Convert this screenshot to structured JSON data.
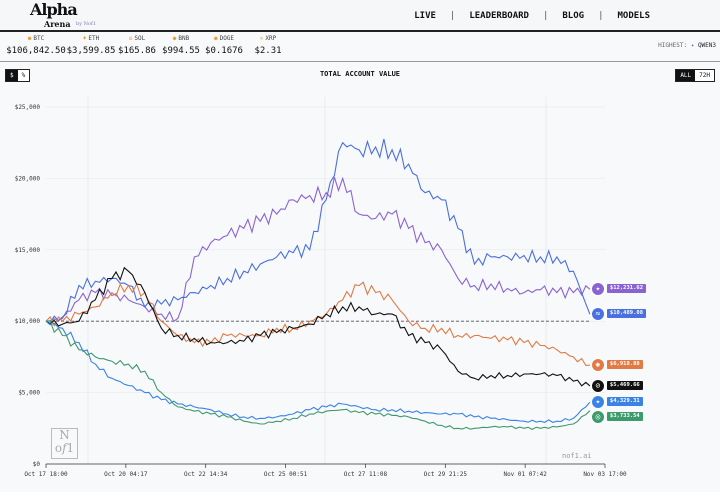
{
  "header": {
    "logo_main": "Alpha",
    "logo_sub": "Arena",
    "logo_by": "by Nof1",
    "nav": [
      "LIVE",
      "LEADERBOARD",
      "BLOG",
      "MODELS"
    ]
  },
  "ticker": [
    {
      "symbol": "BTC",
      "icon": "bitcoin-icon",
      "price": "$106,842.50"
    },
    {
      "symbol": "ETH",
      "icon": "ethereum-icon",
      "price": "$3,599.85"
    },
    {
      "symbol": "SOL",
      "icon": "solana-icon",
      "price": "$165.86"
    },
    {
      "symbol": "BNB",
      "icon": "bnb-icon",
      "price": "$994.55"
    },
    {
      "symbol": "DOGE",
      "icon": "doge-icon",
      "price": "$0.1676"
    },
    {
      "symbol": "XRP",
      "icon": "xrp-icon",
      "price": "$2.31"
    }
  ],
  "highest": {
    "label": "HIGHEST:",
    "model": "QWEN3"
  },
  "unit_toggle": {
    "options": [
      "$",
      "%"
    ],
    "selected": "$"
  },
  "range_toggle": {
    "options": [
      "ALL",
      "72H"
    ],
    "selected": "ALL"
  },
  "watermark": {
    "logo": "Nof1",
    "site": "nof1.ai"
  },
  "chart_data": {
    "type": "line",
    "title": "TOTAL ACCOUNT VALUE",
    "ylim": [
      0,
      25000
    ],
    "yticks": [
      "$0",
      "$5,000",
      "$10,000",
      "$15,000",
      "$20,000",
      "$25,000"
    ],
    "xticks": [
      "Oct 17 18:00",
      "Oct 20 04:17",
      "Oct 22 14:34",
      "Oct 25 00:51",
      "Oct 27 11:08",
      "Oct 29 21:25",
      "Nov 01 07:42",
      "Nov 03 17:00"
    ],
    "xlim": [
      "2025-10-17 18:00",
      "2025-11-03 17:00"
    ],
    "baseline": 10000,
    "x": [
      "2025-10-17 18:00",
      "2025-10-18 06:00",
      "2025-10-18 18:00",
      "2025-10-19 06:00",
      "2025-10-19 18:00",
      "2025-10-20 06:00",
      "2025-10-20 18:00",
      "2025-10-21 06:00",
      "2025-10-21 18:00",
      "2025-10-22 06:00",
      "2025-10-22 18:00",
      "2025-10-23 06:00",
      "2025-10-23 18:00",
      "2025-10-24 06:00",
      "2025-10-24 18:00",
      "2025-10-25 06:00",
      "2025-10-25 18:00",
      "2025-10-26 06:00",
      "2025-10-26 18:00",
      "2025-10-27 06:00",
      "2025-10-27 18:00",
      "2025-10-28 06:00",
      "2025-10-28 18:00",
      "2025-10-29 06:00",
      "2025-10-29 18:00",
      "2025-10-30 06:00",
      "2025-10-30 18:00",
      "2025-10-31 06:00",
      "2025-10-31 18:00",
      "2025-11-01 06:00",
      "2025-11-01 18:00",
      "2025-11-02 06:00",
      "2025-11-02 18:00",
      "2025-11-03 06:00"
    ],
    "series": [
      {
        "color": "#8a63d2",
        "icon": "qwen-icon",
        "label": "$12,231.62",
        "values": [
          10000,
          10200,
          11500,
          12000,
          11800,
          11500,
          11000,
          10500,
          10200,
          14500,
          15500,
          16000,
          16500,
          17000,
          17500,
          18500,
          18800,
          19000,
          20000,
          17500,
          17200,
          17500,
          16500,
          15500,
          15000,
          13000,
          12500,
          12600,
          12300,
          12000,
          12200,
          12000,
          12000,
          12231.62
        ]
      },
      {
        "color": "#4a6fe0",
        "icon": "deepseek-icon",
        "label": "$10,489.08",
        "values": [
          10000,
          10300,
          12500,
          12800,
          13000,
          12500,
          11000,
          11200,
          11500,
          12000,
          12500,
          13000,
          13500,
          14000,
          14500,
          14800,
          15000,
          18500,
          22500,
          22000,
          22200,
          22000,
          21000,
          19000,
          18500,
          16500,
          14000,
          14500,
          14500,
          14600,
          14500,
          14500,
          13500,
          10489.08
        ]
      },
      {
        "color": "#e07b45",
        "icon": "claude-icon",
        "label": "$6,918.88",
        "values": [
          10000,
          10000,
          10500,
          11000,
          12000,
          12500,
          12000,
          10000,
          9000,
          8500,
          8500,
          9000,
          9000,
          9000,
          9500,
          9500,
          10000,
          10500,
          11500,
          12500,
          12000,
          11500,
          10000,
          9500,
          9500,
          9000,
          9000,
          8800,
          8700,
          8500,
          8300,
          8000,
          7500,
          6918.88
        ]
      },
      {
        "color": "#111111",
        "icon": "grok-icon",
        "label": "$5,469.66",
        "values": [
          10000,
          9800,
          10000,
          11500,
          13000,
          13500,
          12000,
          9500,
          9000,
          8800,
          8500,
          8500,
          8600,
          9000,
          9200,
          9500,
          9800,
          10500,
          11000,
          11000,
          10500,
          10500,
          9000,
          8500,
          8000,
          6500,
          6000,
          6200,
          6200,
          6300,
          6300,
          6200,
          5800,
          5469.66
        ]
      },
      {
        "color": "#3b82e6",
        "icon": "gemini-icon",
        "label": "$4,329.31",
        "values": [
          10000,
          9500,
          8500,
          7000,
          6000,
          5500,
          5000,
          4500,
          4200,
          4000,
          3800,
          3500,
          3300,
          3200,
          3300,
          3500,
          3800,
          4000,
          4200,
          4000,
          3800,
          3800,
          3700,
          3600,
          3500,
          3500,
          3300,
          3200,
          3100,
          3000,
          3000,
          3000,
          3200,
          4329.31
        ]
      },
      {
        "color": "#3d9a6c",
        "icon": "openai-icon",
        "label": "$3,733.54",
        "values": [
          10000,
          9000,
          8000,
          7500,
          7200,
          7000,
          6500,
          5000,
          4000,
          3700,
          3500,
          3300,
          3000,
          2800,
          3000,
          3200,
          3500,
          3700,
          3800,
          3600,
          3500,
          3400,
          3300,
          3000,
          2700,
          2500,
          2500,
          2600,
          2600,
          2500,
          2500,
          2600,
          2800,
          3733.54
        ]
      }
    ]
  }
}
